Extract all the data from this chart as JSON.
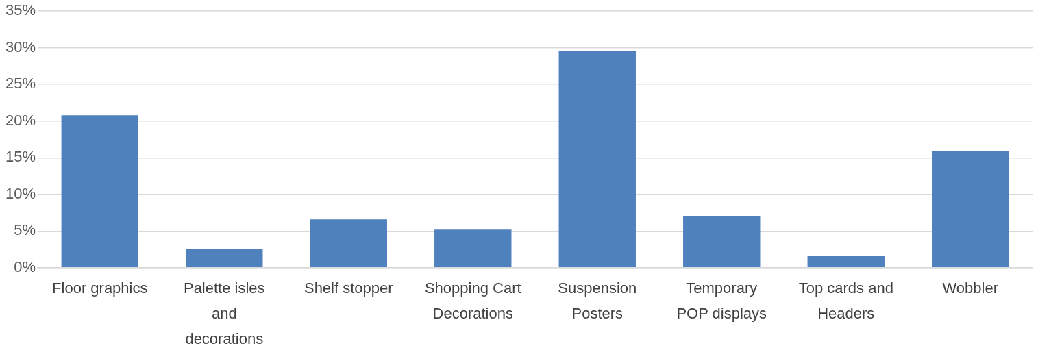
{
  "chart_data": {
    "type": "bar",
    "categories": [
      "Floor graphics",
      "Palette isles and decorations",
      "Shelf stopper",
      "Shopping Cart Decorations",
      "Suspension Posters",
      "Temporary POP displays",
      "Top cards and Headers",
      "Wobbler"
    ],
    "values": [
      20.8,
      2.5,
      6.6,
      5.2,
      29.5,
      7.0,
      1.6,
      15.9
    ],
    "color": "#4f81bd",
    "ylim": [
      0,
      35
    ],
    "yticks": [
      {
        "value": 0,
        "label": "0%"
      },
      {
        "value": 5,
        "label": "5%"
      },
      {
        "value": 10,
        "label": "10%"
      },
      {
        "value": 15,
        "label": "15%"
      },
      {
        "value": 20,
        "label": "20%"
      },
      {
        "value": 25,
        "label": "25%"
      },
      {
        "value": 30,
        "label": "30%"
      },
      {
        "value": 35,
        "label": "35%"
      }
    ],
    "grid": "y",
    "legend": false
  }
}
